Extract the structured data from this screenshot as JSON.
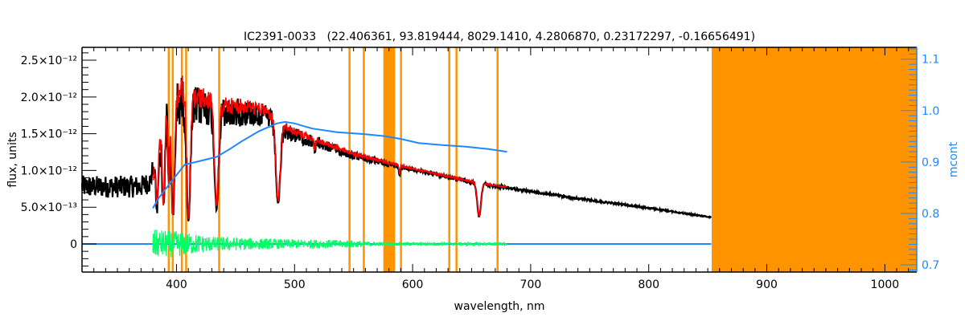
{
  "chart_data": {
    "type": "line",
    "title": "IC2391-0033   (22.406361, 93.819444, 8029.1410, 4.2806870, 0.23172297, -0.16656491)",
    "xlabel": "wavelength, nm",
    "ylabel": "flux, units",
    "y2label": "mcont",
    "xlim": [
      320,
      1027
    ],
    "ylim_units_1e-12": [
      -0.382,
      2.675
    ],
    "y2lim": [
      0.686,
      1.123
    ],
    "xticks": [
      400,
      500,
      600,
      700,
      800,
      900,
      1000
    ],
    "xtick_labels": [
      "400",
      "500",
      "600",
      "700",
      "800",
      "900",
      "1000"
    ],
    "yticks_units_1e-12": [
      0,
      0.5,
      1.0,
      1.5,
      2.0,
      2.5
    ],
    "ytick_labels": [
      "0",
      "5.0×10⁻¹³",
      "1.0×10⁻¹²",
      "1.5×10⁻¹²",
      "2.0×10⁻¹²",
      "2.5×10⁻¹²"
    ],
    "y2ticks": [
      0.7,
      0.8,
      0.9,
      1.0,
      1.1
    ],
    "y2tick_labels": [
      "0.7",
      "0.8",
      "0.9",
      "1.0",
      "1.1"
    ],
    "colors": {
      "observed": "#000000",
      "model": "#ff0000",
      "residual": "#00ff66",
      "mcont": "#1e88ff",
      "mask": "#ff9300",
      "masked_model": "#ffff00"
    },
    "masks_nm": [
      [
        392.6,
        393.4
      ],
      [
        396.0,
        396.8
      ],
      [
        403.7,
        404.5
      ],
      [
        407.3,
        408.1
      ],
      [
        435.3,
        436.1
      ],
      [
        545.7,
        546.5
      ],
      [
        557.8,
        558.6
      ],
      [
        575.2,
        585.2
      ],
      [
        589.3,
        590.1
      ],
      [
        630.2,
        631.0
      ],
      [
        636.3,
        637.1
      ],
      [
        671.1,
        671.9
      ],
      [
        853.3,
        1027
      ]
    ],
    "series": [
      {
        "name": "observed flux",
        "range_nm": [
          320,
          853
        ],
        "continuum_units_1e-12": [
          [
            320,
            0.78
          ],
          [
            370,
            0.78
          ],
          [
            378,
            0.85
          ],
          [
            383,
            1.3
          ],
          [
            388,
            1.75
          ],
          [
            393,
            2.05
          ],
          [
            400,
            2.25
          ],
          [
            405,
            2.3
          ],
          [
            412,
            2.15
          ],
          [
            425,
            2.12
          ],
          [
            440,
            2.0
          ],
          [
            460,
            1.97
          ],
          [
            475,
            1.9
          ],
          [
            482,
            1.8
          ],
          [
            490,
            1.68
          ],
          [
            500,
            1.58
          ],
          [
            520,
            1.45
          ],
          [
            550,
            1.25
          ],
          [
            580,
            1.12
          ],
          [
            600,
            1.04
          ],
          [
            650,
            0.86
          ],
          [
            700,
            0.73
          ],
          [
            750,
            0.61
          ],
          [
            800,
            0.5
          ],
          [
            853,
            0.37
          ]
        ],
        "absorption_lines_nm_depth_width": [
          [
            383.5,
            0.6,
            1.2
          ],
          [
            388.9,
            0.65,
            1.5
          ],
          [
            393.4,
            0.55,
            0.8
          ],
          [
            397.0,
            0.8,
            2.0
          ],
          [
            410.2,
            0.82,
            2.2
          ],
          [
            434.0,
            0.72,
            2.5
          ],
          [
            486.1,
            0.66,
            2.6
          ],
          [
            656.3,
            0.55,
            2.2
          ],
          [
            589.0,
            0.1,
            0.8
          ],
          [
            517.0,
            0.1,
            1.0
          ]
        ],
        "noise_fraction": [
          [
            380,
            0.35
          ],
          [
            420,
            0.25
          ],
          [
            480,
            0.15
          ],
          [
            550,
            0.08
          ],
          [
            600,
            0.05
          ],
          [
            853,
            0.04
          ]
        ]
      },
      {
        "name": "model",
        "range_nm": [
          380,
          680
        ]
      },
      {
        "name": "residual",
        "range_nm": [
          380,
          680
        ],
        "amplitude_units_1e-12": [
          [
            380,
            0.2
          ],
          [
            400,
            0.18
          ],
          [
            430,
            0.1
          ],
          [
            480,
            0.07
          ],
          [
            550,
            0.05
          ],
          [
            575,
            0.02
          ],
          [
            680,
            0.02
          ]
        ]
      },
      {
        "name": "residual zero line",
        "range_nm": [
          320,
          853
        ],
        "value": 0
      },
      {
        "name": "mcont",
        "points": [
          [
            380,
            0.81
          ],
          [
            385,
            0.83
          ],
          [
            395,
            0.86
          ],
          [
            407,
            0.895
          ],
          [
            420,
            0.902
          ],
          [
            434,
            0.91
          ],
          [
            445,
            0.925
          ],
          [
            455,
            0.94
          ],
          [
            470,
            0.96
          ],
          [
            485,
            0.975
          ],
          [
            492,
            0.978
          ],
          [
            500,
            0.975
          ],
          [
            515,
            0.965
          ],
          [
            536,
            0.958
          ],
          [
            560,
            0.954
          ],
          [
            577,
            0.95
          ],
          [
            590,
            0.945
          ],
          [
            605,
            0.937
          ],
          [
            625,
            0.933
          ],
          [
            645,
            0.93
          ],
          [
            665,
            0.925
          ],
          [
            680,
            0.92
          ]
        ]
      }
    ]
  }
}
